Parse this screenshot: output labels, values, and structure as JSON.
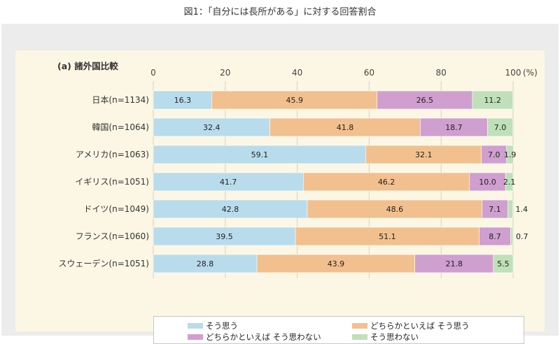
{
  "figure_title": "図1：「自分には長所がある」に対する回答割合",
  "chart_data": {
    "type": "bar",
    "orientation": "horizontal",
    "stacked": true,
    "subtitle": "(a) 諸外国比較",
    "unit_label": "(%)",
    "xlim": [
      0,
      100
    ],
    "x_ticks": [
      0,
      20,
      40,
      60,
      80,
      100
    ],
    "categories": [
      "日本(n=1134)",
      "韓国(n=1064)",
      "アメリカ(n=1063)",
      "イギリス(n=1051)",
      "ドイツ(n=1049)",
      "フランス(n=1060)",
      "スウェーデン(n=1051)"
    ],
    "series": [
      {
        "name": "そう思う",
        "color": "#b9dcec",
        "values": [
          16.3,
          32.4,
          59.1,
          41.7,
          42.8,
          39.5,
          28.8
        ]
      },
      {
        "name": "どちらかといえば そう思う",
        "color": "#f2c08e",
        "values": [
          45.9,
          41.8,
          32.1,
          46.2,
          48.6,
          51.1,
          43.9
        ]
      },
      {
        "name": "どちらかといえば そう思わない",
        "color": "#cf9fcf",
        "values": [
          26.5,
          18.7,
          7.0,
          10.0,
          7.1,
          8.7,
          21.8
        ]
      },
      {
        "name": "そう思わない",
        "color": "#bfe0b9",
        "values": [
          11.2,
          7.0,
          1.9,
          2.1,
          1.4,
          0.7,
          5.5
        ]
      }
    ],
    "grid": true,
    "legend_position": "bottom"
  }
}
